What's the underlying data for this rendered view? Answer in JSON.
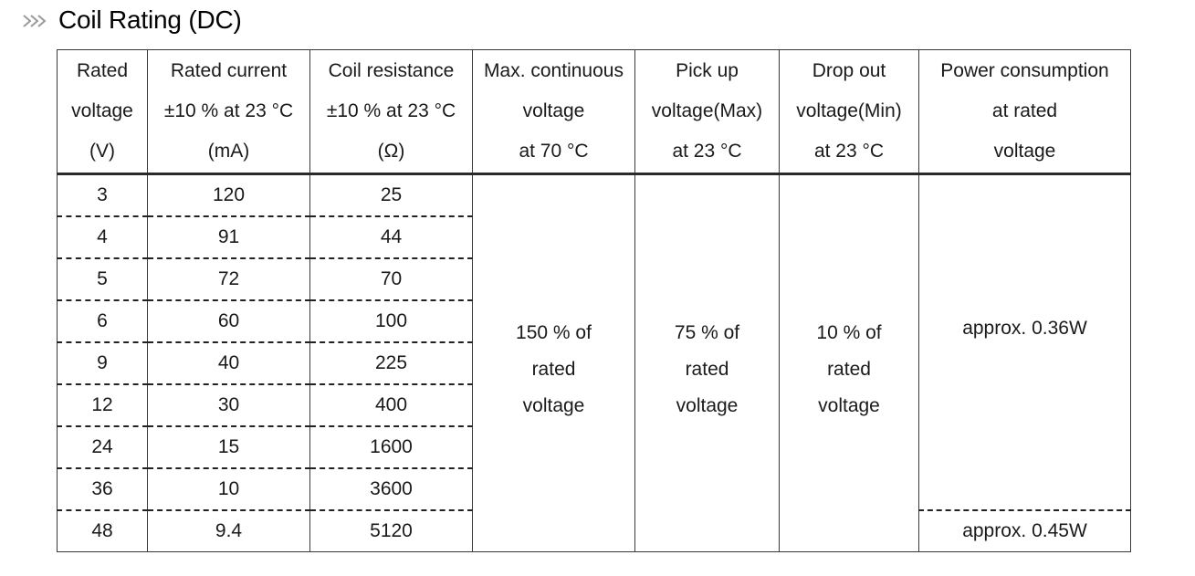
{
  "page": {
    "title": "Coil Rating (DC)",
    "title_icon": "triple-chevron-right-icon"
  },
  "table": {
    "headers": [
      [
        "Rated",
        "voltage",
        "(V)"
      ],
      [
        "Rated current",
        "±10 % at 23 °C",
        "(mA)"
      ],
      [
        "Coil resistance",
        "±10 % at 23 °C",
        "(Ω)"
      ],
      [
        "Max. continuous",
        "voltage",
        "at 70 °C"
      ],
      [
        "Pick up",
        "voltage(Max)",
        "at 23 °C"
      ],
      [
        "Drop out",
        "voltage(Min)",
        "at 23 °C"
      ],
      [
        "Power consumption",
        "at rated",
        "voltage"
      ]
    ],
    "rows": [
      {
        "voltage": "3",
        "current": "120",
        "resistance": "25"
      },
      {
        "voltage": "4",
        "current": "91",
        "resistance": "44"
      },
      {
        "voltage": "5",
        "current": "72",
        "resistance": "70"
      },
      {
        "voltage": "6",
        "current": "60",
        "resistance": "100"
      },
      {
        "voltage": "9",
        "current": "40",
        "resistance": "225"
      },
      {
        "voltage": "12",
        "current": "30",
        "resistance": "400"
      },
      {
        "voltage": "24",
        "current": "15",
        "resistance": "1600"
      },
      {
        "voltage": "36",
        "current": "10",
        "resistance": "3600"
      },
      {
        "voltage": "48",
        "current": "9.4",
        "resistance": "5120"
      }
    ],
    "max_continuous": [
      "150 % of",
      "rated",
      "voltage"
    ],
    "pick_up": [
      "75 % of",
      "rated",
      "voltage"
    ],
    "drop_out": [
      "10 % of",
      "rated",
      "voltage"
    ],
    "power_consumption_main": "approx. 0.36W",
    "power_consumption_last": "approx. 0.45W"
  }
}
